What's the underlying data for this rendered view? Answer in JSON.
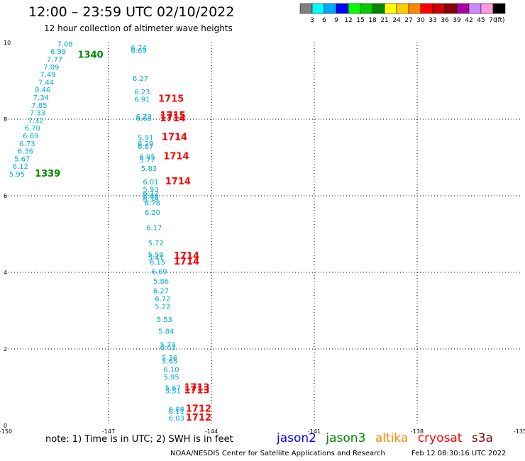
{
  "header": {
    "title": "12:00 – 23:59 UTC 02/10/2022",
    "subtitle": "12 hour collection of altimeter wave heights"
  },
  "colorbar": {
    "unit": "(ft)",
    "ticks": [
      "3",
      "6",
      "9",
      "12",
      "15",
      "18",
      "21",
      "24",
      "27",
      "30",
      "33",
      "36",
      "39",
      "42",
      "45",
      "70"
    ],
    "colors": [
      "#808080",
      "#00ffff",
      "#00aaff",
      "#0000ff",
      "#00ff00",
      "#00cc00",
      "#008800",
      "#ffff00",
      "#ffcc00",
      "#ff8800",
      "#ff0000",
      "#cc0000",
      "#880000",
      "#aa00aa",
      "#cc88ff",
      "#ff99dd",
      "#000000"
    ]
  },
  "footer": {
    "note": "note: 1) Time is in UTC; 2) SWH is in feet",
    "credit": "NOAA/NESDIS Center for Satellite Applications and Research",
    "timestamp": "Feb 12 08:30:16 UTC 2022",
    "legend": [
      {
        "name": "jason2",
        "color": "#0000ff"
      },
      {
        "name": "jason3",
        "color": "#008800"
      },
      {
        "name": "altika",
        "color": "#ff8800"
      },
      {
        "name": "cryosat",
        "color": "#ff0000"
      },
      {
        "name": "s3a",
        "color": "#880000"
      }
    ]
  },
  "chart_data": {
    "type": "scatter",
    "xlim": [
      -150,
      -135
    ],
    "ylim": [
      0,
      10
    ],
    "grid": true,
    "x_ticks": [
      "-150",
      "-147",
      "-144",
      "-141",
      "-138",
      "-135"
    ],
    "y_ticks": [
      "0",
      "2",
      "4",
      "6",
      "8",
      "10"
    ],
    "swh_color": "#00aadd",
    "time_color_green": "#008800",
    "time_color_red": "#ff0000",
    "swh_labels": [
      {
        "x": -148.5,
        "y": 9.9,
        "text": "7.08"
      },
      {
        "x": -148.7,
        "y": 9.7,
        "text": "6.99"
      },
      {
        "x": -148.8,
        "y": 9.5,
        "text": "7.77"
      },
      {
        "x": -148.9,
        "y": 9.3,
        "text": "7.09"
      },
      {
        "x": -149.0,
        "y": 9.1,
        "text": "7.49"
      },
      {
        "x": -149.05,
        "y": 8.9,
        "text": "7.44"
      },
      {
        "x": -149.15,
        "y": 8.7,
        "text": "8.46"
      },
      {
        "x": -149.2,
        "y": 8.5,
        "text": "7.34"
      },
      {
        "x": -149.25,
        "y": 8.3,
        "text": "7.85"
      },
      {
        "x": -149.3,
        "y": 8.1,
        "text": "7.33"
      },
      {
        "x": -149.35,
        "y": 7.9,
        "text": "7.32"
      },
      {
        "x": -149.45,
        "y": 7.7,
        "text": "6.70"
      },
      {
        "x": -149.5,
        "y": 7.5,
        "text": "6.69"
      },
      {
        "x": -149.6,
        "y": 7.3,
        "text": "6.73"
      },
      {
        "x": -149.65,
        "y": 7.1,
        "text": "6.36"
      },
      {
        "x": -149.75,
        "y": 6.9,
        "text": "5.67"
      },
      {
        "x": -149.8,
        "y": 6.7,
        "text": "6.12"
      },
      {
        "x": -149.9,
        "y": 6.5,
        "text": "5.95"
      },
      {
        "x": -146.35,
        "y": 9.8,
        "text": "6.74"
      },
      {
        "x": -146.35,
        "y": 9.72,
        "text": "6.69"
      },
      {
        "x": -146.3,
        "y": 9.0,
        "text": "6.27"
      },
      {
        "x": -146.25,
        "y": 8.65,
        "text": "6.23"
      },
      {
        "x": -146.25,
        "y": 8.45,
        "text": "6.91"
      },
      {
        "x": -146.2,
        "y": 8.0,
        "text": "6.73"
      },
      {
        "x": -146.2,
        "y": 7.95,
        "text": "6.68"
      },
      {
        "x": -146.15,
        "y": 7.45,
        "text": "5.91"
      },
      {
        "x": -146.15,
        "y": 7.3,
        "text": "6.29"
      },
      {
        "x": -146.15,
        "y": 7.22,
        "text": "6.87"
      },
      {
        "x": -146.1,
        "y": 6.95,
        "text": "6.95"
      },
      {
        "x": -146.1,
        "y": 6.87,
        "text": "5.77"
      },
      {
        "x": -146.05,
        "y": 6.65,
        "text": "5.83"
      },
      {
        "x": -146.0,
        "y": 6.3,
        "text": "6.01"
      },
      {
        "x": -146.0,
        "y": 6.1,
        "text": "5.93"
      },
      {
        "x": -146.0,
        "y": 6.0,
        "text": "6.22"
      },
      {
        "x": -146.0,
        "y": 5.92,
        "text": "6.48"
      },
      {
        "x": -146.0,
        "y": 5.84,
        "text": "6.39"
      },
      {
        "x": -145.95,
        "y": 5.75,
        "text": "6.78"
      },
      {
        "x": -145.95,
        "y": 5.5,
        "text": "6.20"
      },
      {
        "x": -145.9,
        "y": 5.1,
        "text": "6.17"
      },
      {
        "x": -145.85,
        "y": 4.7,
        "text": "5.72"
      },
      {
        "x": -145.85,
        "y": 4.4,
        "text": "5.50"
      },
      {
        "x": -145.85,
        "y": 4.32,
        "text": "5.41"
      },
      {
        "x": -145.8,
        "y": 4.2,
        "text": "6.15"
      },
      {
        "x": -145.75,
        "y": 3.95,
        "text": "6.69"
      },
      {
        "x": -145.7,
        "y": 3.7,
        "text": "5.86"
      },
      {
        "x": -145.7,
        "y": 3.45,
        "text": "6.27"
      },
      {
        "x": -145.65,
        "y": 3.25,
        "text": "6.72"
      },
      {
        "x": -145.65,
        "y": 3.05,
        "text": "5.22"
      },
      {
        "x": -145.6,
        "y": 2.7,
        "text": "5.53"
      },
      {
        "x": -145.55,
        "y": 2.4,
        "text": "5.84"
      },
      {
        "x": -145.5,
        "y": 2.05,
        "text": "5.79"
      },
      {
        "x": -145.5,
        "y": 1.97,
        "text": "6.03"
      },
      {
        "x": -145.45,
        "y": 1.7,
        "text": "5.36"
      },
      {
        "x": -145.45,
        "y": 1.62,
        "text": "5.65"
      },
      {
        "x": -145.4,
        "y": 1.4,
        "text": "6.10"
      },
      {
        "x": -145.4,
        "y": 1.2,
        "text": "5.95"
      },
      {
        "x": -145.35,
        "y": 0.92,
        "text": "5.67"
      },
      {
        "x": -145.35,
        "y": 0.84,
        "text": "5.51"
      },
      {
        "x": -145.25,
        "y": 0.36,
        "text": "6.08"
      },
      {
        "x": -145.25,
        "y": 0.3,
        "text": "6.11"
      },
      {
        "x": -145.25,
        "y": 0.13,
        "text": "6.03"
      }
    ],
    "time_labels": [
      {
        "x": -147.9,
        "y": 9.6,
        "text": "1340",
        "color": "green"
      },
      {
        "x": -149.15,
        "y": 6.5,
        "text": "1339",
        "color": "green"
      },
      {
        "x": -145.55,
        "y": 8.45,
        "text": "1715",
        "color": "red"
      },
      {
        "x": -145.5,
        "y": 8.02,
        "text": "1715",
        "color": "red"
      },
      {
        "x": -145.5,
        "y": 7.94,
        "text": "1714",
        "color": "red"
      },
      {
        "x": -145.45,
        "y": 7.45,
        "text": "1714",
        "color": "red"
      },
      {
        "x": -145.4,
        "y": 6.95,
        "text": "1714",
        "color": "red"
      },
      {
        "x": -145.35,
        "y": 6.3,
        "text": "1714",
        "color": "red"
      },
      {
        "x": -145.1,
        "y": 4.35,
        "text": "1714",
        "color": "red"
      },
      {
        "x": -145.1,
        "y": 4.2,
        "text": "1714",
        "color": "red"
      },
      {
        "x": -144.8,
        "y": 0.92,
        "text": "1713",
        "color": "red"
      },
      {
        "x": -144.8,
        "y": 0.84,
        "text": "1713",
        "color": "red"
      },
      {
        "x": -144.75,
        "y": 0.36,
        "text": "1712",
        "color": "red"
      },
      {
        "x": -144.75,
        "y": 0.13,
        "text": "1712",
        "color": "red"
      }
    ]
  }
}
